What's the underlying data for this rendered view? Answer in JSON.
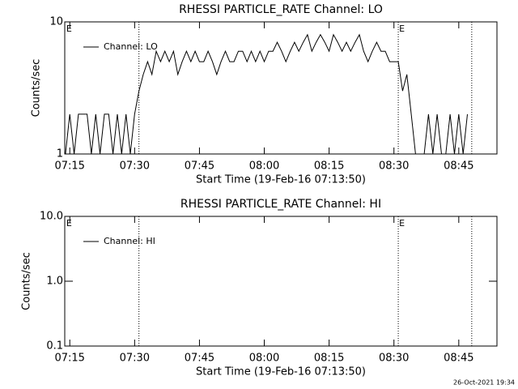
{
  "chart_data": [
    {
      "type": "line",
      "title": "RHESSI PARTICLE_RATE Channel: LO",
      "ylabel": "Counts/sec",
      "xlabel": "Start Time (19-Feb-16 07:13:50)",
      "log_y": true,
      "ylim": [
        1,
        10
      ],
      "yticks": [
        1,
        10
      ],
      "xlim": [
        "07:13:50",
        "08:53:50"
      ],
      "xticks": [
        "07:15",
        "07:30",
        "07:45",
        "08:00",
        "08:15",
        "08:30",
        "08:45"
      ],
      "legend": "upper left",
      "x": [
        "07:14",
        "07:15",
        "07:16",
        "07:17",
        "07:18",
        "07:19",
        "07:20",
        "07:21",
        "07:22",
        "07:23",
        "07:24",
        "07:25",
        "07:26",
        "07:27",
        "07:28",
        "07:29",
        "07:30",
        "07:31",
        "07:32",
        "07:33",
        "07:34",
        "07:35",
        "07:36",
        "07:37",
        "07:38",
        "07:39",
        "07:40",
        "07:41",
        "07:42",
        "07:43",
        "07:44",
        "07:45",
        "07:46",
        "07:47",
        "07:48",
        "07:49",
        "07:50",
        "07:51",
        "07:52",
        "07:53",
        "07:54",
        "07:55",
        "07:56",
        "07:57",
        "07:58",
        "07:59",
        "08:00",
        "08:01",
        "08:02",
        "08:03",
        "08:04",
        "08:05",
        "08:06",
        "08:07",
        "08:08",
        "08:09",
        "08:10",
        "08:11",
        "08:12",
        "08:13",
        "08:14",
        "08:15",
        "08:16",
        "08:17",
        "08:18",
        "08:19",
        "08:20",
        "08:21",
        "08:22",
        "08:23",
        "08:24",
        "08:25",
        "08:26",
        "08:27",
        "08:28",
        "08:29",
        "08:30",
        "08:31",
        "08:32",
        "08:33",
        "08:34",
        "08:35",
        "08:36",
        "08:37",
        "08:38",
        "08:39",
        "08:40",
        "08:41",
        "08:42",
        "08:43",
        "08:44",
        "08:45",
        "08:46",
        "08:47"
      ],
      "series": [
        {
          "name": "Channel: LO",
          "color": "#000000",
          "values": [
            1,
            2,
            1,
            2,
            2,
            2,
            1,
            2,
            1,
            2,
            2,
            1,
            2,
            1,
            2,
            1,
            2,
            3,
            4,
            5,
            4,
            6,
            5,
            6,
            5,
            6,
            4,
            5,
            6,
            5,
            6,
            5,
            5,
            6,
            5,
            4,
            5,
            6,
            5,
            5,
            6,
            6,
            5,
            6,
            5,
            6,
            5,
            6,
            6,
            7,
            6,
            5,
            6,
            7,
            6,
            7,
            8,
            6,
            7,
            8,
            7,
            6,
            8,
            7,
            6,
            7,
            6,
            7,
            8,
            6,
            5,
            6,
            7,
            6,
            6,
            5,
            5,
            5,
            3,
            4,
            2,
            1,
            1,
            1,
            2,
            1,
            2,
            1,
            1,
            2,
            1,
            2,
            1,
            2
          ]
        }
      ],
      "markers": [
        "07:31",
        "08:31",
        "08:48"
      ],
      "annotations": [
        {
          "text": "E",
          "x": "07:14"
        },
        {
          "text": "E",
          "x": "08:31"
        }
      ]
    },
    {
      "type": "line",
      "title": "RHESSI PARTICLE_RATE Channel: HI",
      "ylabel": "Counts/sec",
      "xlabel": "Start Time (19-Feb-16 07:13:50)",
      "log_y": true,
      "ylim": [
        0.1,
        10
      ],
      "yticks": [
        0.1,
        {
          "value": 1,
          "label": "1.0"
        },
        {
          "value": 10,
          "label": "10.0"
        }
      ],
      "xlim": [
        "07:13:50",
        "08:53:50"
      ],
      "xticks": [
        "07:15",
        "07:30",
        "07:45",
        "08:00",
        "08:15",
        "08:30",
        "08:45"
      ],
      "legend": "upper left",
      "x": [],
      "series": [
        {
          "name": "Channel: HI",
          "color": "#000000",
          "values": []
        }
      ],
      "markers": [
        "07:31",
        "08:31",
        "08:48"
      ],
      "annotations": [
        {
          "text": "E",
          "x": "07:14"
        },
        {
          "text": "E",
          "x": "08:31"
        }
      ]
    }
  ],
  "footer": "26-Oct-2021 19:34"
}
